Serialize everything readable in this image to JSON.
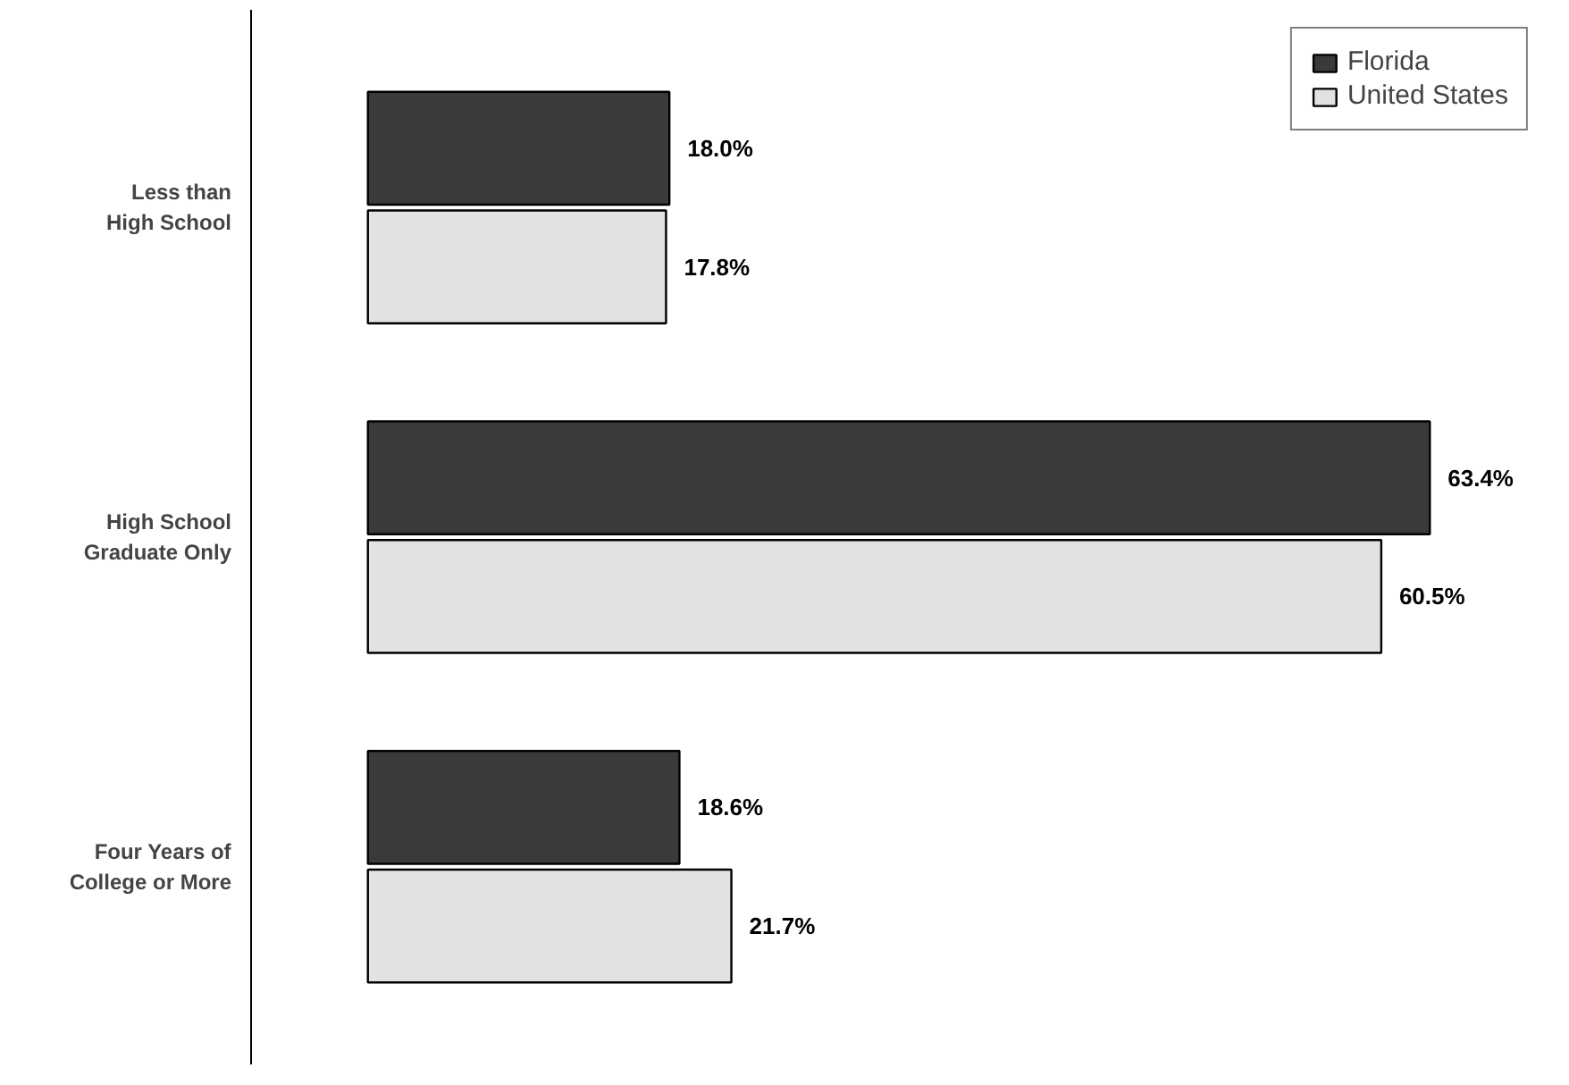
{
  "chart_data": {
    "type": "bar",
    "orientation": "horizontal",
    "categories": [
      "Less than\nHigh School",
      "High School\nGraduate Only",
      "Four Years of\nCollege or More"
    ],
    "series": [
      {
        "name": "Florida",
        "color": "#3a3a3a",
        "values": [
          18.0,
          63.4,
          18.6
        ],
        "value_labels": [
          "18.0%",
          "63.4%",
          "18.6%"
        ]
      },
      {
        "name": "United States",
        "color": "#e2e2e2",
        "values": [
          17.8,
          60.5,
          21.7
        ],
        "value_labels": [
          "17.8%",
          "60.5%",
          "21.7%"
        ]
      }
    ],
    "tick_labels": "y",
    "grid": false,
    "legend": "top right"
  }
}
